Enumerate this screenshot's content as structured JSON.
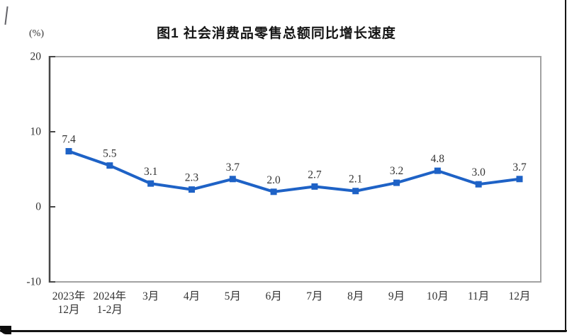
{
  "title": "图1  社会消费品零售总额同比增长速度",
  "unit_label": "(%)",
  "chart_data": {
    "type": "line",
    "title": "图1 社会消费品零售总额同比增长速度",
    "ylabel": "(%)",
    "xlabel": "",
    "categories": [
      [
        "2023年",
        "12月"
      ],
      [
        "2024年",
        "1-2月"
      ],
      [
        "3月"
      ],
      [
        "4月"
      ],
      [
        "5月"
      ],
      [
        "6月"
      ],
      [
        "7月"
      ],
      [
        "8月"
      ],
      [
        "9月"
      ],
      [
        "10月"
      ],
      [
        "11月"
      ],
      [
        "12月"
      ]
    ],
    "values": [
      7.4,
      5.5,
      3.1,
      2.3,
      3.7,
      2.0,
      2.7,
      2.1,
      3.2,
      4.8,
      3.0,
      3.7
    ],
    "ylim": [
      -10,
      20
    ],
    "yticks": [
      20,
      10,
      0,
      -10
    ],
    "grid": false,
    "legend": "none",
    "data_labels": true,
    "marker": "square",
    "line_color": "#1e62c6",
    "axis_color": "#474747",
    "frame_color": "#a2a2a2",
    "label_color": "#333333"
  }
}
